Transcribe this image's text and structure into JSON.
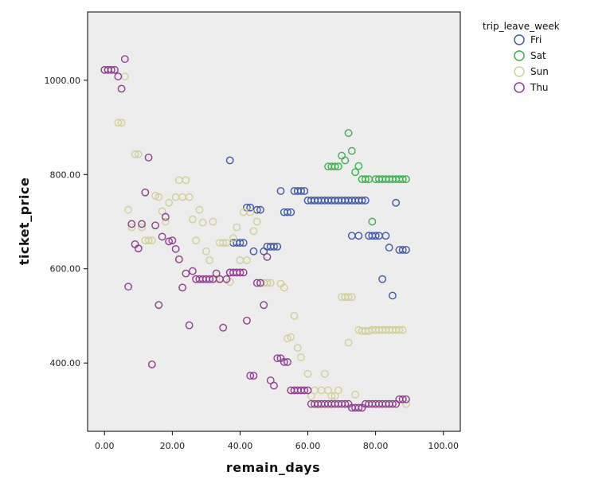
{
  "chart_data": {
    "type": "scatter",
    "xlabel": "remain_days",
    "ylabel": "ticket_price",
    "xlim": [
      -5,
      105
    ],
    "ylim": [
      255,
      1145
    ],
    "x_ticks": [
      0,
      20,
      40,
      60,
      80,
      100
    ],
    "x_tick_labels": [
      "0.00",
      "20.00",
      "40.00",
      "60.00",
      "80.00",
      "100.00"
    ],
    "y_ticks": [
      400,
      600,
      800,
      1000
    ],
    "y_tick_labels": [
      "400.00",
      "600.00",
      "800.00",
      "1000.00"
    ],
    "grid": false,
    "plot_background": "#ededed",
    "legend": {
      "title": "trip_leave_week",
      "position": "top-right"
    },
    "series": [
      {
        "name": "Fri",
        "color": "#3f56a8",
        "points": [
          [
            37,
            830
          ],
          [
            38,
            655
          ],
          [
            39,
            655
          ],
          [
            40,
            655
          ],
          [
            41,
            655
          ],
          [
            42,
            730
          ],
          [
            43,
            730
          ],
          [
            44,
            637
          ],
          [
            45,
            725
          ],
          [
            46,
            725
          ],
          [
            47,
            637
          ],
          [
            48,
            647
          ],
          [
            49,
            647
          ],
          [
            50,
            647
          ],
          [
            51,
            647
          ],
          [
            52,
            765
          ],
          [
            53,
            720
          ],
          [
            54,
            720
          ],
          [
            55,
            720
          ],
          [
            56,
            765
          ],
          [
            57,
            765
          ],
          [
            58,
            765
          ],
          [
            59,
            765
          ],
          [
            60,
            745
          ],
          [
            61,
            745
          ],
          [
            62,
            745
          ],
          [
            63,
            745
          ],
          [
            64,
            745
          ],
          [
            65,
            745
          ],
          [
            66,
            745
          ],
          [
            67,
            745
          ],
          [
            68,
            745
          ],
          [
            69,
            745
          ],
          [
            70,
            745
          ],
          [
            71,
            745
          ],
          [
            72,
            745
          ],
          [
            73,
            745
          ],
          [
            74,
            745
          ],
          [
            75,
            745
          ],
          [
            76,
            745
          ],
          [
            77,
            745
          ],
          [
            73,
            670
          ],
          [
            75,
            670
          ],
          [
            78,
            670
          ],
          [
            79,
            670
          ],
          [
            80,
            670
          ],
          [
            81,
            670
          ],
          [
            83,
            670
          ],
          [
            82,
            578
          ],
          [
            84,
            645
          ],
          [
            85,
            543
          ],
          [
            86,
            740
          ],
          [
            87,
            640
          ],
          [
            88,
            640
          ],
          [
            89,
            640
          ]
        ]
      },
      {
        "name": "Sat",
        "color": "#38b24a",
        "points": [
          [
            66,
            817
          ],
          [
            67,
            817
          ],
          [
            68,
            817
          ],
          [
            69,
            817
          ],
          [
            70,
            840
          ],
          [
            71,
            830
          ],
          [
            72,
            888
          ],
          [
            73,
            850
          ],
          [
            74,
            805
          ],
          [
            75,
            818
          ],
          [
            76,
            790
          ],
          [
            77,
            790
          ],
          [
            78,
            790
          ],
          [
            79,
            700
          ],
          [
            80,
            790
          ],
          [
            81,
            790
          ],
          [
            82,
            790
          ],
          [
            83,
            790
          ],
          [
            84,
            790
          ],
          [
            85,
            790
          ],
          [
            86,
            790
          ],
          [
            87,
            790
          ],
          [
            88,
            790
          ],
          [
            89,
            790
          ]
        ]
      },
      {
        "name": "Sun",
        "color": "#cfcf98",
        "points": [
          [
            4,
            910
          ],
          [
            5,
            910
          ],
          [
            6,
            1008
          ],
          [
            7,
            725
          ],
          [
            8,
            688
          ],
          [
            9,
            843
          ],
          [
            10,
            843
          ],
          [
            11,
            688
          ],
          [
            12,
            660
          ],
          [
            13,
            660
          ],
          [
            14,
            660
          ],
          [
            15,
            755
          ],
          [
            16,
            752
          ],
          [
            17,
            722
          ],
          [
            18,
            700
          ],
          [
            19,
            740
          ],
          [
            21,
            752
          ],
          [
            22,
            788
          ],
          [
            23,
            752
          ],
          [
            24,
            788
          ],
          [
            25,
            752
          ],
          [
            26,
            705
          ],
          [
            27,
            660
          ],
          [
            28,
            725
          ],
          [
            29,
            698
          ],
          [
            30,
            637
          ],
          [
            31,
            618
          ],
          [
            32,
            700
          ],
          [
            33,
            578
          ],
          [
            34,
            655
          ],
          [
            35,
            655
          ],
          [
            36,
            655
          ],
          [
            37,
            572
          ],
          [
            38,
            665
          ],
          [
            39,
            688
          ],
          [
            40,
            618
          ],
          [
            41,
            720
          ],
          [
            42,
            618
          ],
          [
            43,
            720
          ],
          [
            44,
            680
          ],
          [
            45,
            700
          ],
          [
            46,
            570
          ],
          [
            47,
            570
          ],
          [
            48,
            570
          ],
          [
            49,
            570
          ],
          [
            52,
            568
          ],
          [
            53,
            560
          ],
          [
            54,
            452
          ],
          [
            55,
            455
          ],
          [
            56,
            500
          ],
          [
            57,
            432
          ],
          [
            58,
            412
          ],
          [
            60,
            377
          ],
          [
            61,
            330
          ],
          [
            62,
            342
          ],
          [
            63,
            312
          ],
          [
            64,
            342
          ],
          [
            65,
            377
          ],
          [
            66,
            342
          ],
          [
            67,
            330
          ],
          [
            68,
            330
          ],
          [
            69,
            342
          ],
          [
            70,
            540
          ],
          [
            71,
            540
          ],
          [
            72,
            540
          ],
          [
            72,
            443
          ],
          [
            73,
            540
          ],
          [
            74,
            333
          ],
          [
            75,
            470
          ],
          [
            76,
            468
          ],
          [
            77,
            468
          ],
          [
            78,
            468
          ],
          [
            79,
            470
          ],
          [
            80,
            470
          ],
          [
            81,
            470
          ],
          [
            82,
            470
          ],
          [
            83,
            470
          ],
          [
            84,
            470
          ],
          [
            85,
            470
          ],
          [
            86,
            470
          ],
          [
            87,
            470
          ],
          [
            88,
            470
          ],
          [
            89,
            313
          ]
        ]
      },
      {
        "name": "Thu",
        "color": "#8e3d8e",
        "points": [
          [
            0,
            1022
          ],
          [
            1,
            1022
          ],
          [
            2,
            1022
          ],
          [
            3,
            1022
          ],
          [
            4,
            1008
          ],
          [
            5,
            982
          ],
          [
            6,
            1045
          ],
          [
            7,
            562
          ],
          [
            8,
            695
          ],
          [
            9,
            652
          ],
          [
            10,
            643
          ],
          [
            11,
            695
          ],
          [
            12,
            762
          ],
          [
            13,
            836
          ],
          [
            14,
            397
          ],
          [
            15,
            692
          ],
          [
            16,
            523
          ],
          [
            17,
            668
          ],
          [
            18,
            710
          ],
          [
            19,
            658
          ],
          [
            20,
            660
          ],
          [
            21,
            642
          ],
          [
            22,
            620
          ],
          [
            23,
            560
          ],
          [
            24,
            590
          ],
          [
            25,
            480
          ],
          [
            26,
            595
          ],
          [
            27,
            578
          ],
          [
            28,
            578
          ],
          [
            29,
            578
          ],
          [
            30,
            578
          ],
          [
            31,
            578
          ],
          [
            32,
            578
          ],
          [
            33,
            590
          ],
          [
            34,
            578
          ],
          [
            35,
            475
          ],
          [
            36,
            578
          ],
          [
            37,
            592
          ],
          [
            38,
            592
          ],
          [
            39,
            592
          ],
          [
            40,
            592
          ],
          [
            41,
            592
          ],
          [
            42,
            490
          ],
          [
            43,
            373
          ],
          [
            44,
            373
          ],
          [
            45,
            570
          ],
          [
            46,
            570
          ],
          [
            47,
            523
          ],
          [
            48,
            625
          ],
          [
            49,
            363
          ],
          [
            50,
            352
          ],
          [
            51,
            410
          ],
          [
            52,
            410
          ],
          [
            53,
            402
          ],
          [
            54,
            402
          ],
          [
            55,
            342
          ],
          [
            56,
            342
          ],
          [
            57,
            342
          ],
          [
            58,
            342
          ],
          [
            59,
            342
          ],
          [
            60,
            342
          ],
          [
            61,
            313
          ],
          [
            62,
            313
          ],
          [
            63,
            313
          ],
          [
            64,
            313
          ],
          [
            65,
            313
          ],
          [
            66,
            313
          ],
          [
            67,
            313
          ],
          [
            68,
            313
          ],
          [
            69,
            313
          ],
          [
            70,
            313
          ],
          [
            71,
            313
          ],
          [
            72,
            313
          ],
          [
            73,
            305
          ],
          [
            74,
            305
          ],
          [
            75,
            305
          ],
          [
            76,
            305
          ],
          [
            77,
            313
          ],
          [
            78,
            313
          ],
          [
            79,
            313
          ],
          [
            80,
            313
          ],
          [
            81,
            313
          ],
          [
            82,
            313
          ],
          [
            83,
            313
          ],
          [
            84,
            313
          ],
          [
            85,
            313
          ],
          [
            86,
            313
          ],
          [
            87,
            323
          ],
          [
            88,
            323
          ],
          [
            89,
            323
          ]
        ]
      }
    ]
  }
}
